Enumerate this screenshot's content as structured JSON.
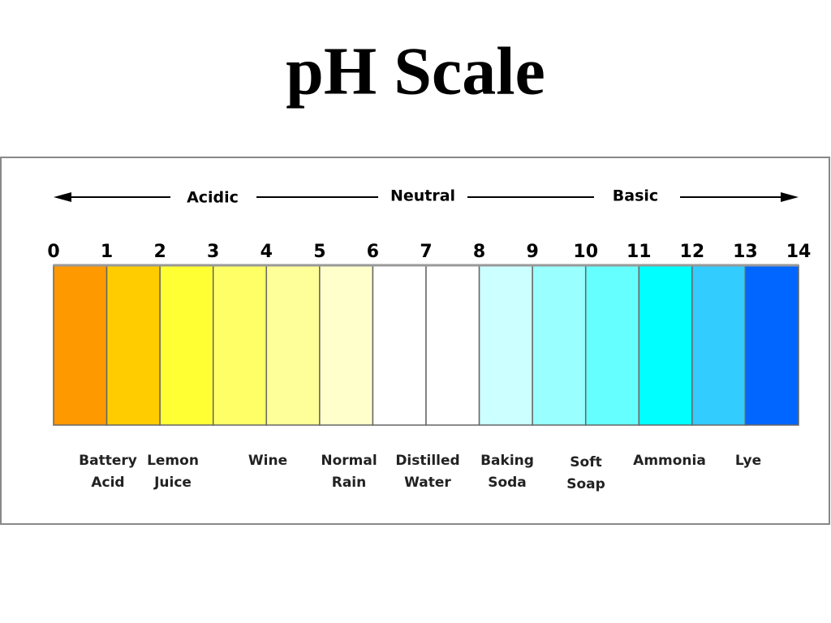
{
  "header": {
    "title": "pH Scale"
  },
  "directions": {
    "acidic": "Acidic",
    "neutral": "Neutral",
    "basic": "Basic"
  },
  "scale": {
    "ticks": [
      0,
      1,
      2,
      3,
      4,
      5,
      6,
      7,
      8,
      9,
      10,
      11,
      12,
      13,
      14
    ],
    "colors": [
      "#ff9900",
      "#ffcc00",
      "#ffff33",
      "#ffff66",
      "#ffff99",
      "#ffffcc",
      "#ffffff",
      "#ffffff",
      "#ccffff",
      "#99ffff",
      "#66ffff",
      "#00ffff",
      "#33ccff",
      "#0066ff"
    ]
  },
  "substances": [
    {
      "lines": [
        "Battery",
        "Acid"
      ]
    },
    {
      "lines": [
        "Lemon",
        "Juice"
      ]
    },
    {
      "lines": [
        "Wine"
      ]
    },
    {
      "lines": [
        "Normal",
        "Rain"
      ]
    },
    {
      "lines": [
        "Distilled",
        "Water"
      ]
    },
    {
      "lines": [
        "Baking",
        "Soda"
      ]
    },
    {
      "lines": [
        "Soft",
        "Soap"
      ]
    },
    {
      "lines": [
        "Ammonia"
      ]
    },
    {
      "lines": [
        "Lye"
      ]
    }
  ]
}
